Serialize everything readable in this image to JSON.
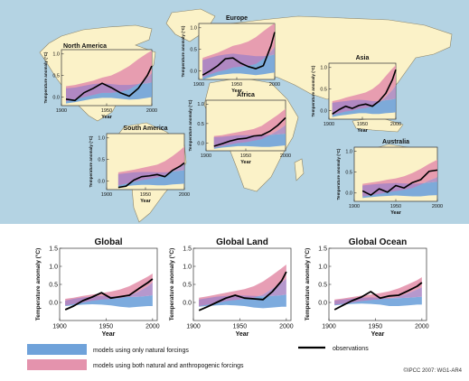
{
  "colors": {
    "ocean": "#b4d3e3",
    "land": "#fbf2c8",
    "land_stroke": "#8e8567",
    "natural_band": "#6fa2da",
    "combined_band": "#e493ad",
    "observations": "#000000",
    "panel_bg": "#fbf2c8",
    "global_panel_bg": "#ffffff"
  },
  "legend": {
    "natural": "models using only natural forcings",
    "combined": "models using both natural and anthropogenic forcings",
    "observations": "observations"
  },
  "credit": "©IPCC 2007: WG1-AR4",
  "chart_data": [
    {
      "id": "north-america",
      "type": "line",
      "title": "North America",
      "ylabel": "Temperature anomaly (°C)",
      "xlabel": "Year",
      "xlim": [
        1900,
        2000
      ],
      "ylim": [
        -0.2,
        1.1
      ],
      "xticks": [
        1900,
        1950,
        2000
      ],
      "yticks": [
        0.0,
        0.5,
        1.0
      ],
      "x": [
        1905,
        1915,
        1925,
        1935,
        1945,
        1955,
        1965,
        1975,
        1985,
        1995,
        2000
      ],
      "series": [
        {
          "name": "observations",
          "values": [
            -0.05,
            -0.08,
            0.1,
            0.2,
            0.32,
            0.22,
            0.1,
            0.02,
            0.2,
            0.5,
            0.72
          ]
        }
      ],
      "natural_band": {
        "lower": [
          -0.15,
          -0.12,
          -0.08,
          -0.04,
          -0.02,
          -0.02,
          -0.04,
          -0.06,
          -0.05,
          -0.02,
          0.0
        ],
        "upper": [
          0.2,
          0.22,
          0.26,
          0.3,
          0.32,
          0.3,
          0.28,
          0.28,
          0.3,
          0.32,
          0.34
        ]
      },
      "combined_band": {
        "lower": [
          -0.1,
          -0.05,
          0.0,
          0.05,
          0.1,
          0.1,
          0.12,
          0.18,
          0.3,
          0.45,
          0.55
        ],
        "upper": [
          0.25,
          0.28,
          0.33,
          0.38,
          0.45,
          0.5,
          0.6,
          0.72,
          0.88,
          1.02,
          1.08
        ]
      }
    },
    {
      "id": "europe",
      "type": "line",
      "title": "Europe",
      "ylabel": "Temperature anomaly (°C)",
      "xlabel": "Year",
      "xlim": [
        1900,
        2000
      ],
      "ylim": [
        -0.2,
        1.1
      ],
      "xticks": [
        1900,
        1950,
        2000
      ],
      "yticks": [
        0.0,
        0.5,
        1.0
      ],
      "x": [
        1905,
        1915,
        1925,
        1935,
        1945,
        1955,
        1965,
        1975,
        1985,
        1995,
        2000
      ],
      "series": [
        {
          "name": "observations",
          "values": [
            -0.1,
            0.0,
            0.12,
            0.28,
            0.3,
            0.18,
            0.1,
            0.05,
            0.12,
            0.58,
            0.9
          ]
        }
      ],
      "natural_band": {
        "lower": [
          -0.2,
          -0.15,
          -0.1,
          -0.08,
          -0.06,
          -0.06,
          -0.08,
          -0.1,
          -0.08,
          -0.05,
          -0.04
        ],
        "upper": [
          0.25,
          0.3,
          0.35,
          0.38,
          0.4,
          0.38,
          0.36,
          0.34,
          0.34,
          0.36,
          0.38
        ]
      },
      "combined_band": {
        "lower": [
          -0.15,
          -0.08,
          -0.02,
          0.02,
          0.08,
          0.1,
          0.12,
          0.16,
          0.28,
          0.45,
          0.55
        ],
        "upper": [
          0.3,
          0.36,
          0.42,
          0.5,
          0.58,
          0.62,
          0.68,
          0.78,
          0.92,
          1.05,
          1.1
        ]
      }
    },
    {
      "id": "asia",
      "type": "line",
      "title": "Asia",
      "ylabel": "Temperature anomaly (°C)",
      "xlabel": "Year",
      "xlim": [
        1900,
        2000
      ],
      "ylim": [
        -0.2,
        1.1
      ],
      "xticks": [
        1900,
        1950,
        2000
      ],
      "yticks": [
        0.0,
        0.5,
        1.0
      ],
      "x": [
        1905,
        1915,
        1925,
        1935,
        1945,
        1955,
        1965,
        1975,
        1985,
        1995,
        2000
      ],
      "series": [
        {
          "name": "observations",
          "values": [
            -0.08,
            0.02,
            0.1,
            0.05,
            0.12,
            0.15,
            0.1,
            0.22,
            0.4,
            0.72,
            0.95
          ]
        }
      ],
      "natural_band": {
        "lower": [
          -0.15,
          -0.12,
          -0.1,
          -0.08,
          -0.06,
          -0.06,
          -0.08,
          -0.08,
          -0.06,
          -0.05,
          -0.04
        ],
        "upper": [
          0.18,
          0.2,
          0.22,
          0.24,
          0.25,
          0.24,
          0.22,
          0.22,
          0.24,
          0.26,
          0.28
        ]
      },
      "combined_band": {
        "lower": [
          -0.1,
          -0.06,
          -0.02,
          0.0,
          0.04,
          0.06,
          0.1,
          0.18,
          0.32,
          0.48,
          0.58
        ],
        "upper": [
          0.22,
          0.25,
          0.3,
          0.34,
          0.38,
          0.42,
          0.5,
          0.62,
          0.8,
          0.98,
          1.05
        ]
      }
    },
    {
      "id": "africa",
      "type": "line",
      "title": "Africa",
      "ylabel": "Temperature anomaly (°C)",
      "xlabel": "Year",
      "xlim": [
        1900,
        2000
      ],
      "ylim": [
        -0.2,
        1.1
      ],
      "xticks": [
        1900,
        1950,
        2000
      ],
      "yticks": [
        0.0,
        0.5,
        1.0
      ],
      "x": [
        1910,
        1920,
        1930,
        1940,
        1950,
        1960,
        1970,
        1980,
        1990,
        2000
      ],
      "series": [
        {
          "name": "observations",
          "values": [
            -0.08,
            -0.02,
            0.05,
            0.1,
            0.12,
            0.18,
            0.2,
            0.3,
            0.45,
            0.65
          ]
        }
      ],
      "natural_band": {
        "lower": [
          -0.15,
          -0.12,
          -0.1,
          -0.08,
          -0.08,
          -0.09,
          -0.1,
          -0.1,
          -0.08,
          -0.06
        ],
        "upper": [
          0.15,
          0.16,
          0.18,
          0.2,
          0.2,
          0.2,
          0.2,
          0.21,
          0.22,
          0.24
        ]
      },
      "combined_band": {
        "lower": [
          -0.12,
          -0.08,
          -0.04,
          0.0,
          0.02,
          0.06,
          0.1,
          0.2,
          0.32,
          0.46
        ],
        "upper": [
          0.18,
          0.2,
          0.24,
          0.28,
          0.32,
          0.36,
          0.44,
          0.58,
          0.72,
          0.88
        ]
      }
    },
    {
      "id": "south-america",
      "type": "line",
      "title": "South America",
      "ylabel": "Temperature anomaly (°C)",
      "xlabel": "Year",
      "xlim": [
        1900,
        2000
      ],
      "ylim": [
        -0.2,
        1.1
      ],
      "xticks": [
        1900,
        1950,
        2000
      ],
      "yticks": [
        0.0,
        0.5,
        1.0
      ],
      "x": [
        1915,
        1925,
        1935,
        1945,
        1955,
        1965,
        1975,
        1985,
        1995,
        2000
      ],
      "series": [
        {
          "name": "observations",
          "values": [
            -0.15,
            -0.12,
            0.02,
            0.1,
            0.12,
            0.15,
            0.1,
            0.25,
            0.35,
            0.42
          ]
        }
      ],
      "natural_band": {
        "lower": [
          -0.15,
          -0.12,
          -0.1,
          -0.09,
          -0.09,
          -0.1,
          -0.1,
          -0.08,
          -0.07,
          -0.06
        ],
        "upper": [
          0.16,
          0.18,
          0.2,
          0.21,
          0.21,
          0.2,
          0.2,
          0.22,
          0.24,
          0.25
        ]
      },
      "combined_band": {
        "lower": [
          -0.1,
          -0.06,
          -0.02,
          0.02,
          0.05,
          0.08,
          0.14,
          0.24,
          0.36,
          0.42
        ],
        "upper": [
          0.2,
          0.23,
          0.26,
          0.3,
          0.34,
          0.38,
          0.46,
          0.58,
          0.72,
          0.8
        ]
      }
    },
    {
      "id": "australia",
      "type": "line",
      "title": "Australia",
      "ylabel": "Temperature anomaly (°C)",
      "xlabel": "Year",
      "xlim": [
        1900,
        2000
      ],
      "ylim": [
        -0.2,
        1.1
      ],
      "xticks": [
        1900,
        1950,
        2000
      ],
      "yticks": [
        0.0,
        0.5,
        1.0
      ],
      "x": [
        1910,
        1920,
        1930,
        1940,
        1950,
        1960,
        1970,
        1980,
        1990,
        2000
      ],
      "series": [
        {
          "name": "observations",
          "values": [
            0.05,
            -0.05,
            0.1,
            0.02,
            0.18,
            0.12,
            0.25,
            0.32,
            0.52,
            0.55
          ]
        }
      ],
      "natural_band": {
        "lower": [
          -0.12,
          -0.1,
          -0.08,
          -0.07,
          -0.06,
          -0.07,
          -0.08,
          -0.08,
          -0.06,
          -0.05
        ],
        "upper": [
          0.18,
          0.2,
          0.22,
          0.23,
          0.24,
          0.23,
          0.22,
          0.23,
          0.25,
          0.27
        ]
      },
      "combined_band": {
        "lower": [
          -0.08,
          -0.05,
          -0.02,
          0.02,
          0.05,
          0.08,
          0.12,
          0.2,
          0.3,
          0.38
        ],
        "upper": [
          0.22,
          0.25,
          0.28,
          0.32,
          0.35,
          0.4,
          0.48,
          0.58,
          0.7,
          0.8
        ]
      }
    },
    {
      "id": "global",
      "type": "line",
      "title": "Global",
      "ylabel": "Temperature anomaly (°C)",
      "xlabel": "Year",
      "xlim": [
        1900,
        2005
      ],
      "ylim": [
        -0.5,
        1.5
      ],
      "xticks": [
        1900,
        1950,
        2000
      ],
      "yticks": [
        0.0,
        0.5,
        1.0,
        1.5
      ],
      "x": [
        1906,
        1915,
        1925,
        1935,
        1945,
        1955,
        1965,
        1975,
        1985,
        1995,
        2000
      ],
      "series": [
        {
          "name": "observations",
          "values": [
            -0.2,
            -0.1,
            0.05,
            0.15,
            0.27,
            0.12,
            0.16,
            0.2,
            0.38,
            0.55,
            0.65
          ]
        }
      ],
      "natural_band": {
        "lower": [
          -0.1,
          -0.08,
          -0.06,
          -0.05,
          -0.06,
          -0.08,
          -0.12,
          -0.14,
          -0.12,
          -0.1,
          -0.1
        ],
        "upper": [
          0.05,
          0.1,
          0.14,
          0.16,
          0.18,
          0.17,
          0.16,
          0.15,
          0.16,
          0.18,
          0.2
        ]
      },
      "combined_band": {
        "lower": [
          -0.08,
          -0.04,
          0.0,
          0.05,
          0.08,
          0.1,
          0.12,
          0.18,
          0.3,
          0.45,
          0.55
        ],
        "upper": [
          0.1,
          0.13,
          0.18,
          0.22,
          0.26,
          0.3,
          0.36,
          0.45,
          0.58,
          0.72,
          0.8
        ]
      }
    },
    {
      "id": "global-land",
      "type": "line",
      "title": "Global Land",
      "ylabel": "Temperature anomaly (°C)",
      "xlabel": "Year",
      "xlim": [
        1900,
        2005
      ],
      "ylim": [
        -0.5,
        1.5
      ],
      "xticks": [
        1900,
        1950,
        2000
      ],
      "yticks": [
        0.0,
        0.5,
        1.0,
        1.5
      ],
      "x": [
        1906,
        1915,
        1925,
        1935,
        1945,
        1955,
        1965,
        1975,
        1985,
        1995,
        2000
      ],
      "series": [
        {
          "name": "observations",
          "values": [
            -0.22,
            -0.12,
            0.0,
            0.12,
            0.2,
            0.12,
            0.1,
            0.08,
            0.3,
            0.6,
            0.85
          ]
        }
      ],
      "natural_band": {
        "lower": [
          -0.12,
          -0.1,
          -0.08,
          -0.07,
          -0.08,
          -0.1,
          -0.14,
          -0.16,
          -0.14,
          -0.12,
          -0.12
        ],
        "upper": [
          0.08,
          0.12,
          0.16,
          0.18,
          0.2,
          0.19,
          0.18,
          0.17,
          0.18,
          0.2,
          0.22
        ]
      },
      "combined_band": {
        "lower": [
          -0.1,
          -0.06,
          -0.02,
          0.04,
          0.07,
          0.1,
          0.13,
          0.22,
          0.38,
          0.55,
          0.66
        ],
        "upper": [
          0.13,
          0.17,
          0.22,
          0.27,
          0.32,
          0.37,
          0.45,
          0.58,
          0.76,
          0.95,
          1.05
        ]
      }
    },
    {
      "id": "global-ocean",
      "type": "line",
      "title": "Global Ocean",
      "ylabel": "Temperature anomaly (°C)",
      "xlabel": "Year",
      "xlim": [
        1900,
        2005
      ],
      "ylim": [
        -0.5,
        1.5
      ],
      "xticks": [
        1900,
        1950,
        2000
      ],
      "yticks": [
        0.0,
        0.5,
        1.0,
        1.5
      ],
      "x": [
        1906,
        1915,
        1925,
        1935,
        1945,
        1955,
        1965,
        1975,
        1985,
        1995,
        2000
      ],
      "series": [
        {
          "name": "observations",
          "values": [
            -0.2,
            -0.08,
            0.05,
            0.15,
            0.3,
            0.12,
            0.18,
            0.2,
            0.32,
            0.45,
            0.55
          ]
        }
      ],
      "natural_band": {
        "lower": [
          -0.08,
          -0.06,
          -0.04,
          -0.03,
          -0.04,
          -0.06,
          -0.1,
          -0.1,
          -0.08,
          -0.06,
          -0.06
        ],
        "upper": [
          0.05,
          0.08,
          0.11,
          0.13,
          0.14,
          0.13,
          0.12,
          0.12,
          0.13,
          0.15,
          0.16
        ]
      },
      "combined_band": {
        "lower": [
          -0.06,
          -0.03,
          0.0,
          0.04,
          0.07,
          0.09,
          0.11,
          0.16,
          0.25,
          0.36,
          0.42
        ],
        "upper": [
          0.08,
          0.11,
          0.15,
          0.19,
          0.22,
          0.26,
          0.31,
          0.39,
          0.5,
          0.62,
          0.7
        ]
      }
    }
  ]
}
